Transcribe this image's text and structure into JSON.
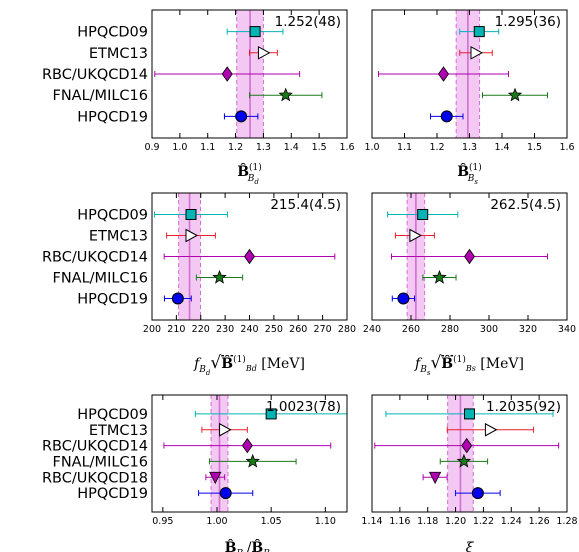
{
  "row_labels": [
    "HPQCD09",
    "ETMC13",
    "RBC/UKQCD14",
    "FNAL/MILC16",
    "RBC/UKQCD18",
    "HPQCD19"
  ],
  "colors": {
    "HPQCD09": "#00b4b4",
    "ETMC13": "#e8202a",
    "RBC/UKQCD14": "#b000b0",
    "FNAL/MILC16": "#1a7a1a",
    "RBC/UKQCD18": "#b000b0",
    "HPQCD19": "#0000ee",
    "band": "#f3c8f3",
    "bandline": "#d070d0"
  },
  "chart_data": [
    {
      "type": "scatter",
      "xlabel": "B̂(1) Bd",
      "average_label": "1.252(48)",
      "average": 1.252,
      "average_err": 0.048,
      "xlim": [
        0.9,
        1.6
      ],
      "xticks": [
        "0.9",
        "1.0",
        "1.1",
        "1.2",
        "1.3",
        "1.4",
        "1.5",
        "1.6"
      ],
      "rows": [
        "HPQCD09",
        "ETMC13",
        "RBC/UKQCD14",
        "FNAL/MILC16",
        "HPQCD19"
      ],
      "points": [
        {
          "label": "HPQCD09",
          "value": 1.27,
          "err": 0.1,
          "marker": "square"
        },
        {
          "label": "ETMC13",
          "value": 1.3,
          "err": 0.05,
          "marker": "triangle"
        },
        {
          "label": "RBC/UKQCD14",
          "value": 1.17,
          "err": 0.26,
          "marker": "diamond"
        },
        {
          "label": "FNAL/MILC16",
          "value": 1.38,
          "err": 0.13,
          "marker": "star"
        },
        {
          "label": "HPQCD19",
          "value": 1.22,
          "err": 0.06,
          "marker": "circle"
        }
      ]
    },
    {
      "type": "scatter",
      "xlabel": "B̂(1) Bs",
      "average_label": "1.295(36)",
      "average": 1.295,
      "average_err": 0.036,
      "xlim": [
        1.0,
        1.6
      ],
      "xticks": [
        "1.0",
        "1.1",
        "1.2",
        "1.3",
        "1.4",
        "1.5",
        "1.6"
      ],
      "rows": [
        "HPQCD09",
        "ETMC13",
        "RBC/UKQCD14",
        "FNAL/MILC16",
        "HPQCD19"
      ],
      "points": [
        {
          "label": "HPQCD09",
          "value": 1.33,
          "err": 0.06,
          "marker": "square"
        },
        {
          "label": "ETMC13",
          "value": 1.32,
          "err": 0.05,
          "marker": "triangle"
        },
        {
          "label": "RBC/UKQCD14",
          "value": 1.22,
          "err": 0.2,
          "marker": "diamond"
        },
        {
          "label": "FNAL/MILC16",
          "value": 1.44,
          "err": 0.1,
          "marker": "star"
        },
        {
          "label": "HPQCD19",
          "value": 1.23,
          "err": 0.05,
          "marker": "circle"
        }
      ]
    },
    {
      "type": "scatter",
      "xlabel": "f_Bd √B̂(1) Bd [MeV]",
      "average_label": "215.4(4.5)",
      "average": 215.4,
      "average_err": 4.5,
      "xlim": [
        200,
        280
      ],
      "xticks": [
        "200",
        "210",
        "220",
        "230",
        "240",
        "250",
        "260",
        "270",
        "280"
      ],
      "rows": [
        "HPQCD09",
        "ETMC13",
        "RBC/UKQCD14",
        "FNAL/MILC16",
        "HPQCD19"
      ],
      "points": [
        {
          "label": "HPQCD09",
          "value": 216,
          "err": 15,
          "marker": "square"
        },
        {
          "label": "ETMC13",
          "value": 216,
          "err": 10,
          "marker": "triangle"
        },
        {
          "label": "RBC/UKQCD14",
          "value": 240,
          "err": 35,
          "marker": "diamond"
        },
        {
          "label": "FNAL/MILC16",
          "value": 227.7,
          "err": 9.5,
          "marker": "star"
        },
        {
          "label": "HPQCD19",
          "value": 210.6,
          "err": 5.5,
          "marker": "circle"
        }
      ]
    },
    {
      "type": "scatter",
      "xlabel": "f_Bs √B̂(1) Bs [MeV]",
      "average_label": "262.5(4.5)",
      "average": 262.5,
      "average_err": 4.5,
      "xlim": [
        240,
        340
      ],
      "xticks": [
        "240",
        "260",
        "280",
        "300",
        "320",
        "340"
      ],
      "rows": [
        "HPQCD09",
        "ETMC13",
        "RBC/UKQCD14",
        "FNAL/MILC16",
        "HPQCD19"
      ],
      "points": [
        {
          "label": "HPQCD09",
          "value": 266,
          "err": 18,
          "marker": "square"
        },
        {
          "label": "ETMC13",
          "value": 262,
          "err": 10,
          "marker": "triangle"
        },
        {
          "label": "RBC/UKQCD14",
          "value": 290,
          "err": 40,
          "marker": "diamond"
        },
        {
          "label": "FNAL/MILC16",
          "value": 274.6,
          "err": 8.5,
          "marker": "star"
        },
        {
          "label": "HPQCD19",
          "value": 256.1,
          "err": 5.7,
          "marker": "circle"
        }
      ]
    },
    {
      "type": "scatter",
      "xlabel": "B̂Bs / B̂Bd",
      "average_label": "1.0023(78)",
      "average": 1.0023,
      "average_err": 0.0078,
      "xlim": [
        0.94,
        1.12
      ],
      "xticks": [
        "0.95",
        "1.00",
        "1.05",
        "1.10"
      ],
      "tickvals": [
        0.95,
        1.0,
        1.05,
        1.1
      ],
      "rows": [
        "HPQCD09",
        "ETMC13",
        "RBC/UKQCD14",
        "FNAL/MILC16",
        "RBC/UKQCD18",
        "HPQCD19"
      ],
      "points": [
        {
          "label": "HPQCD09",
          "value": 1.05,
          "err": 0.07,
          "marker": "square"
        },
        {
          "label": "ETMC13",
          "value": 1.007,
          "err": 0.021,
          "marker": "triangle"
        },
        {
          "label": "RBC/UKQCD14",
          "value": 1.028,
          "err": 0.077,
          "marker": "diamond"
        },
        {
          "label": "FNAL/MILC16",
          "value": 1.033,
          "err": 0.04,
          "marker": "star"
        },
        {
          "label": "RBC/UKQCD18",
          "value": 0.9984,
          "err": 0.0087,
          "marker": "triangle-down"
        },
        {
          "label": "HPQCD19",
          "value": 1.008,
          "err": 0.025,
          "marker": "circle"
        }
      ]
    },
    {
      "type": "scatter",
      "xlabel": "ξ",
      "average_label": "1.2035(92)",
      "average": 1.2035,
      "average_err": 0.0092,
      "xlim": [
        1.14,
        1.28
      ],
      "xticks": [
        "1.14",
        "1.16",
        "1.18",
        "1.20",
        "1.22",
        "1.24",
        "1.26",
        "1.28"
      ],
      "rows": [
        "HPQCD09",
        "ETMC13",
        "RBC/UKQCD14",
        "FNAL/MILC16",
        "RBC/UKQCD18",
        "HPQCD19"
      ],
      "points": [
        {
          "label": "HPQCD09",
          "value": 1.21,
          "err": 0.06,
          "marker": "square"
        },
        {
          "label": "ETMC13",
          "value": 1.225,
          "err": 0.031,
          "marker": "triangle"
        },
        {
          "label": "RBC/UKQCD14",
          "value": 1.208,
          "err": 0.066,
          "marker": "diamond"
        },
        {
          "label": "FNAL/MILC16",
          "value": 1.206,
          "err": 0.017,
          "marker": "star"
        },
        {
          "label": "RBC/UKQCD18",
          "value": 1.1853,
          "err": 0.0086,
          "marker": "triangle-down"
        },
        {
          "label": "HPQCD19",
          "value": 1.216,
          "err": 0.016,
          "marker": "circle"
        }
      ]
    }
  ]
}
